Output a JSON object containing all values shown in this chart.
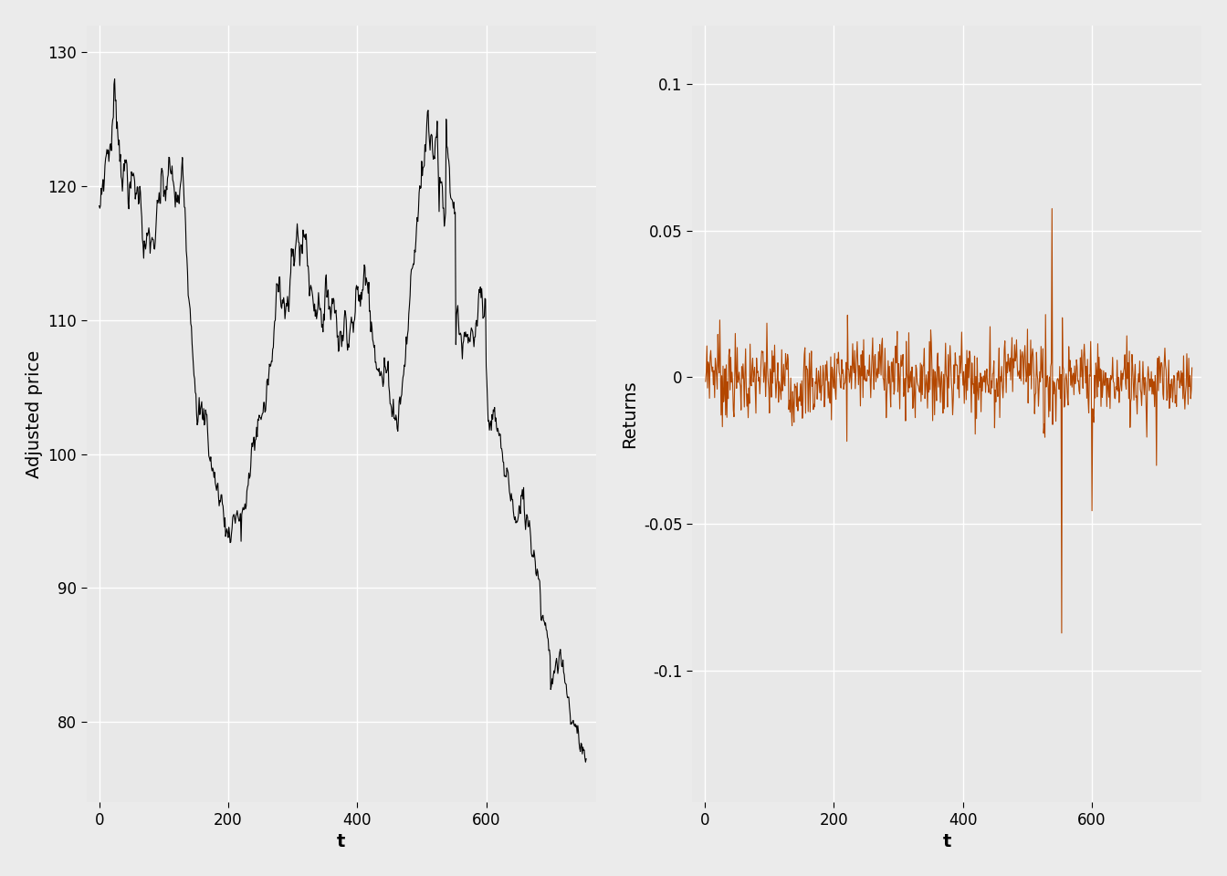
{
  "left_ylabel": "Adjusted price",
  "right_ylabel": "Returns",
  "xlabel": "t",
  "line_color_left": "#000000",
  "line_color_right": "#b34700",
  "bg_color": "#e8e8e8",
  "outer_bg": "#ebebeb",
  "grid_color": "#ffffff",
  "ylim_left": [
    74,
    132
  ],
  "ylim_right": [
    -0.145,
    0.12
  ],
  "yticks_left": [
    80,
    90,
    100,
    110,
    120,
    130
  ],
  "yticks_right": [
    -0.1,
    -0.05,
    0.0,
    0.05,
    0.1
  ],
  "xticks": [
    0,
    200,
    400,
    600
  ],
  "n_points": 756,
  "label_fontsize": 14,
  "tick_fontsize": 12,
  "linewidth": 0.8
}
